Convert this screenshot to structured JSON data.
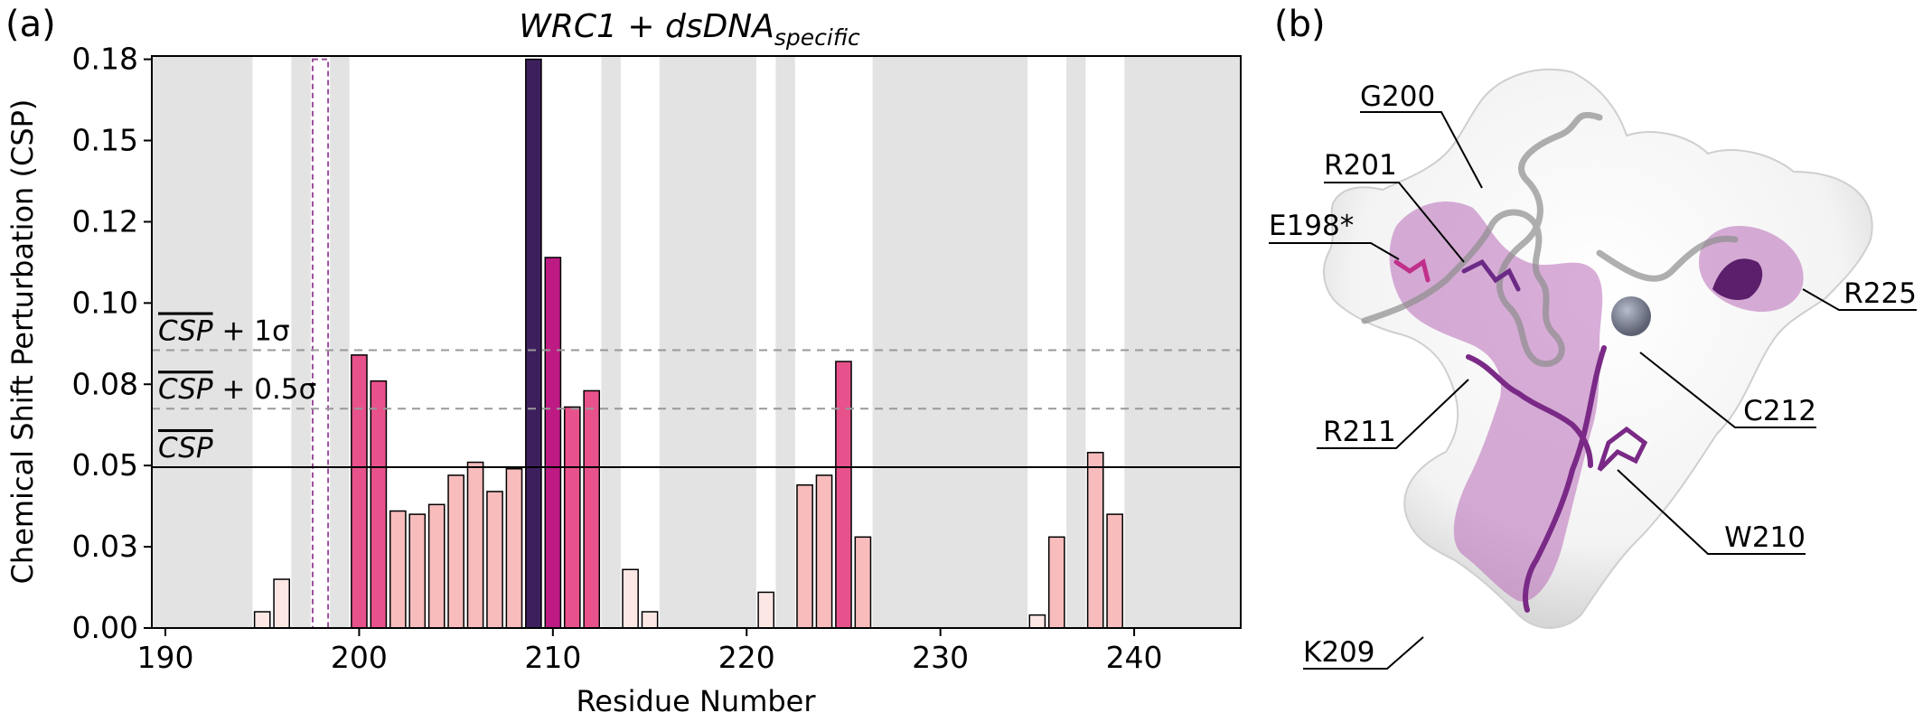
{
  "figure": {
    "panel_a_label": "(a)",
    "panel_b_label": "(b)"
  },
  "chart_data": {
    "type": "bar",
    "title": {
      "main": "WRC1 + dsDNA",
      "subscript": "specific"
    },
    "xlabel": "Residue Number",
    "ylabel": "Chemical Shift Perturbation (CSP)",
    "xlim": [
      189.3,
      245.5
    ],
    "ylim": [
      0,
      0.176
    ],
    "xticks": [
      190,
      200,
      210,
      220,
      230,
      240
    ],
    "yticks": [
      0.0,
      0.025,
      0.05,
      0.075,
      0.1,
      0.125,
      0.15,
      0.175
    ],
    "ytick_labels": [
      "0.00",
      "0.03",
      "0.05",
      "0.08",
      "0.10",
      "0.12",
      "0.15",
      "0.18"
    ],
    "grid": false,
    "shaded_regions": [
      [
        189.3,
        194.5
      ],
      [
        196.5,
        197.5
      ],
      [
        198.5,
        199.5
      ],
      [
        212.5,
        213.5
      ],
      [
        215.5,
        220.5
      ],
      [
        221.5,
        222.5
      ],
      [
        226.5,
        234.5
      ],
      [
        236.5,
        237.5
      ],
      [
        239.5,
        245.5
      ]
    ],
    "highlighted_residue": {
      "x": 198,
      "value": 0.175,
      "style": "dashed-outline",
      "color": "#9b4d9b"
    },
    "bars": [
      {
        "x": 195,
        "value": 0.005
      },
      {
        "x": 196,
        "value": 0.015
      },
      {
        "x": 200,
        "value": 0.084
      },
      {
        "x": 201,
        "value": 0.076
      },
      {
        "x": 202,
        "value": 0.036
      },
      {
        "x": 203,
        "value": 0.035
      },
      {
        "x": 204,
        "value": 0.038
      },
      {
        "x": 205,
        "value": 0.047
      },
      {
        "x": 206,
        "value": 0.051
      },
      {
        "x": 207,
        "value": 0.042
      },
      {
        "x": 208,
        "value": 0.049
      },
      {
        "x": 209,
        "value": 0.175
      },
      {
        "x": 210,
        "value": 0.114
      },
      {
        "x": 211,
        "value": 0.068
      },
      {
        "x": 212,
        "value": 0.073
      },
      {
        "x": 214,
        "value": 0.018
      },
      {
        "x": 215,
        "value": 0.005
      },
      {
        "x": 221,
        "value": 0.011
      },
      {
        "x": 223,
        "value": 0.044
      },
      {
        "x": 224,
        "value": 0.047
      },
      {
        "x": 225,
        "value": 0.082
      },
      {
        "x": 226,
        "value": 0.028
      },
      {
        "x": 235,
        "value": 0.004
      },
      {
        "x": 236,
        "value": 0.028
      },
      {
        "x": 238,
        "value": 0.054
      },
      {
        "x": 239,
        "value": 0.035
      }
    ],
    "reference_lines": [
      {
        "y": 0.0495,
        "label": "CSP",
        "overline": true,
        "style": "solid",
        "color": "#000000"
      },
      {
        "y": 0.0675,
        "label": "CSP",
        "suffix": " + 0.5σ",
        "overline": true,
        "style": "dashed",
        "color": "#999999"
      },
      {
        "y": 0.0855,
        "label": "CSP",
        "suffix": " + 1σ",
        "overline": true,
        "style": "dashed",
        "color": "#999999"
      }
    ],
    "colors": {
      "shade": "#e3e3e3",
      "bar_very_low": "#fde7e5",
      "bar_low": "#f8bcbc",
      "bar_above_half_sigma": "#e8528c",
      "bar_above_one_sigma": "#e8528c",
      "bar_high": "#be1a84",
      "bar_max": "#3e1f5e"
    }
  },
  "structure_labels": [
    "G200",
    "R201",
    "E198*",
    "R225",
    "C212",
    "R211",
    "W210",
    "K209"
  ]
}
